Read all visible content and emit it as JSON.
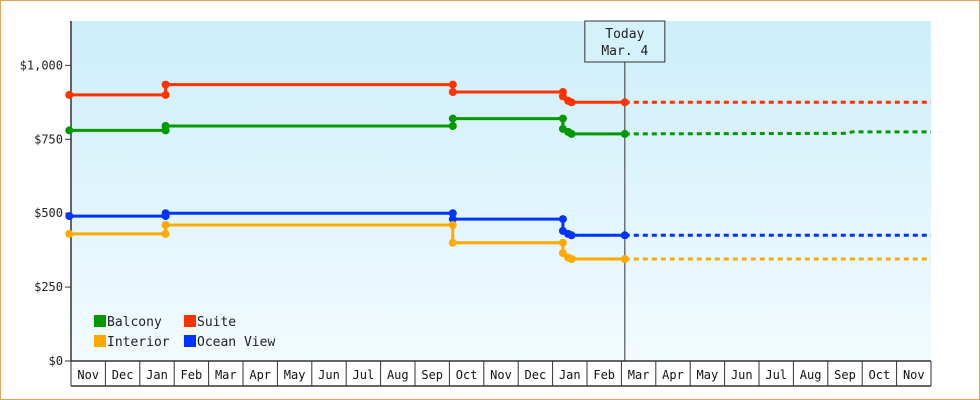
{
  "chart_data": {
    "type": "line",
    "title": "",
    "xlabel": "",
    "ylabel": "",
    "ylim": [
      0,
      1150
    ],
    "y_ticks": [
      0,
      250,
      500,
      750,
      1000
    ],
    "y_tick_labels": [
      "$0",
      "$250",
      "$500",
      "$750",
      "$1,000"
    ],
    "x_tick_labels": [
      "Nov",
      "Dec",
      "Jan",
      "Feb",
      "Mar",
      "Apr",
      "May",
      "Jun",
      "Jul",
      "Aug",
      "Sep",
      "Oct",
      "Nov",
      "Dec",
      "Jan",
      "Feb",
      "Mar",
      "Apr",
      "May",
      "Jun",
      "Jul",
      "Aug",
      "Sep",
      "Oct",
      "Nov"
    ],
    "x_range_months": [
      0,
      25
    ],
    "legend_position": "bottom-left",
    "grid": false,
    "colors": {
      "plot_bg_top": "#cdeefb",
      "plot_bg_bottom": "#f2fbff",
      "frame_border": "#e8a45c"
    },
    "today": {
      "line1": "Today",
      "line2": "Mar. 4",
      "x": 16.1
    },
    "series": [
      {
        "name": "Suite",
        "color": "#ff3300",
        "points": [
          [
            -0.05,
            900
          ],
          [
            2.75,
            900
          ],
          [
            2.75,
            935
          ],
          [
            11.1,
            935
          ],
          [
            11.1,
            910
          ],
          [
            14.3,
            910
          ],
          [
            14.3,
            895
          ],
          [
            14.45,
            880
          ],
          [
            14.55,
            875
          ],
          [
            16.1,
            875
          ]
        ],
        "forecast": [
          [
            16.1,
            875
          ],
          [
            25,
            875
          ]
        ]
      },
      {
        "name": "Balcony",
        "color": "#009900",
        "points": [
          [
            -0.05,
            780
          ],
          [
            2.75,
            780
          ],
          [
            2.75,
            795
          ],
          [
            11.1,
            795
          ],
          [
            11.1,
            820
          ],
          [
            14.3,
            820
          ],
          [
            14.3,
            785
          ],
          [
            14.45,
            775
          ],
          [
            14.55,
            768
          ],
          [
            16.1,
            768
          ]
        ],
        "forecast": [
          [
            16.1,
            768
          ],
          [
            22.6,
            770
          ],
          [
            22.7,
            775
          ],
          [
            25,
            775
          ]
        ]
      },
      {
        "name": "Ocean View",
        "color": "#0033ff",
        "points": [
          [
            -0.05,
            490
          ],
          [
            2.75,
            490
          ],
          [
            2.75,
            500
          ],
          [
            11.1,
            500
          ],
          [
            11.1,
            480
          ],
          [
            14.3,
            480
          ],
          [
            14.3,
            440
          ],
          [
            14.45,
            430
          ],
          [
            14.55,
            425
          ],
          [
            16.1,
            425
          ]
        ],
        "forecast": [
          [
            16.1,
            425
          ],
          [
            25,
            425
          ]
        ]
      },
      {
        "name": "Interior",
        "color": "#ffaa00",
        "points": [
          [
            -0.05,
            430
          ],
          [
            2.75,
            430
          ],
          [
            2.75,
            460
          ],
          [
            11.1,
            460
          ],
          [
            11.1,
            400
          ],
          [
            14.3,
            400
          ],
          [
            14.3,
            365
          ],
          [
            14.45,
            350
          ],
          [
            14.55,
            345
          ],
          [
            16.1,
            345
          ]
        ],
        "forecast": [
          [
            16.1,
            345
          ],
          [
            25,
            345
          ]
        ]
      }
    ],
    "legend": [
      {
        "name": "Balcony",
        "color": "#009900"
      },
      {
        "name": "Suite",
        "color": "#ff3300"
      },
      {
        "name": "Interior",
        "color": "#ffaa00"
      },
      {
        "name": "Ocean View",
        "color": "#0033ff"
      }
    ]
  }
}
